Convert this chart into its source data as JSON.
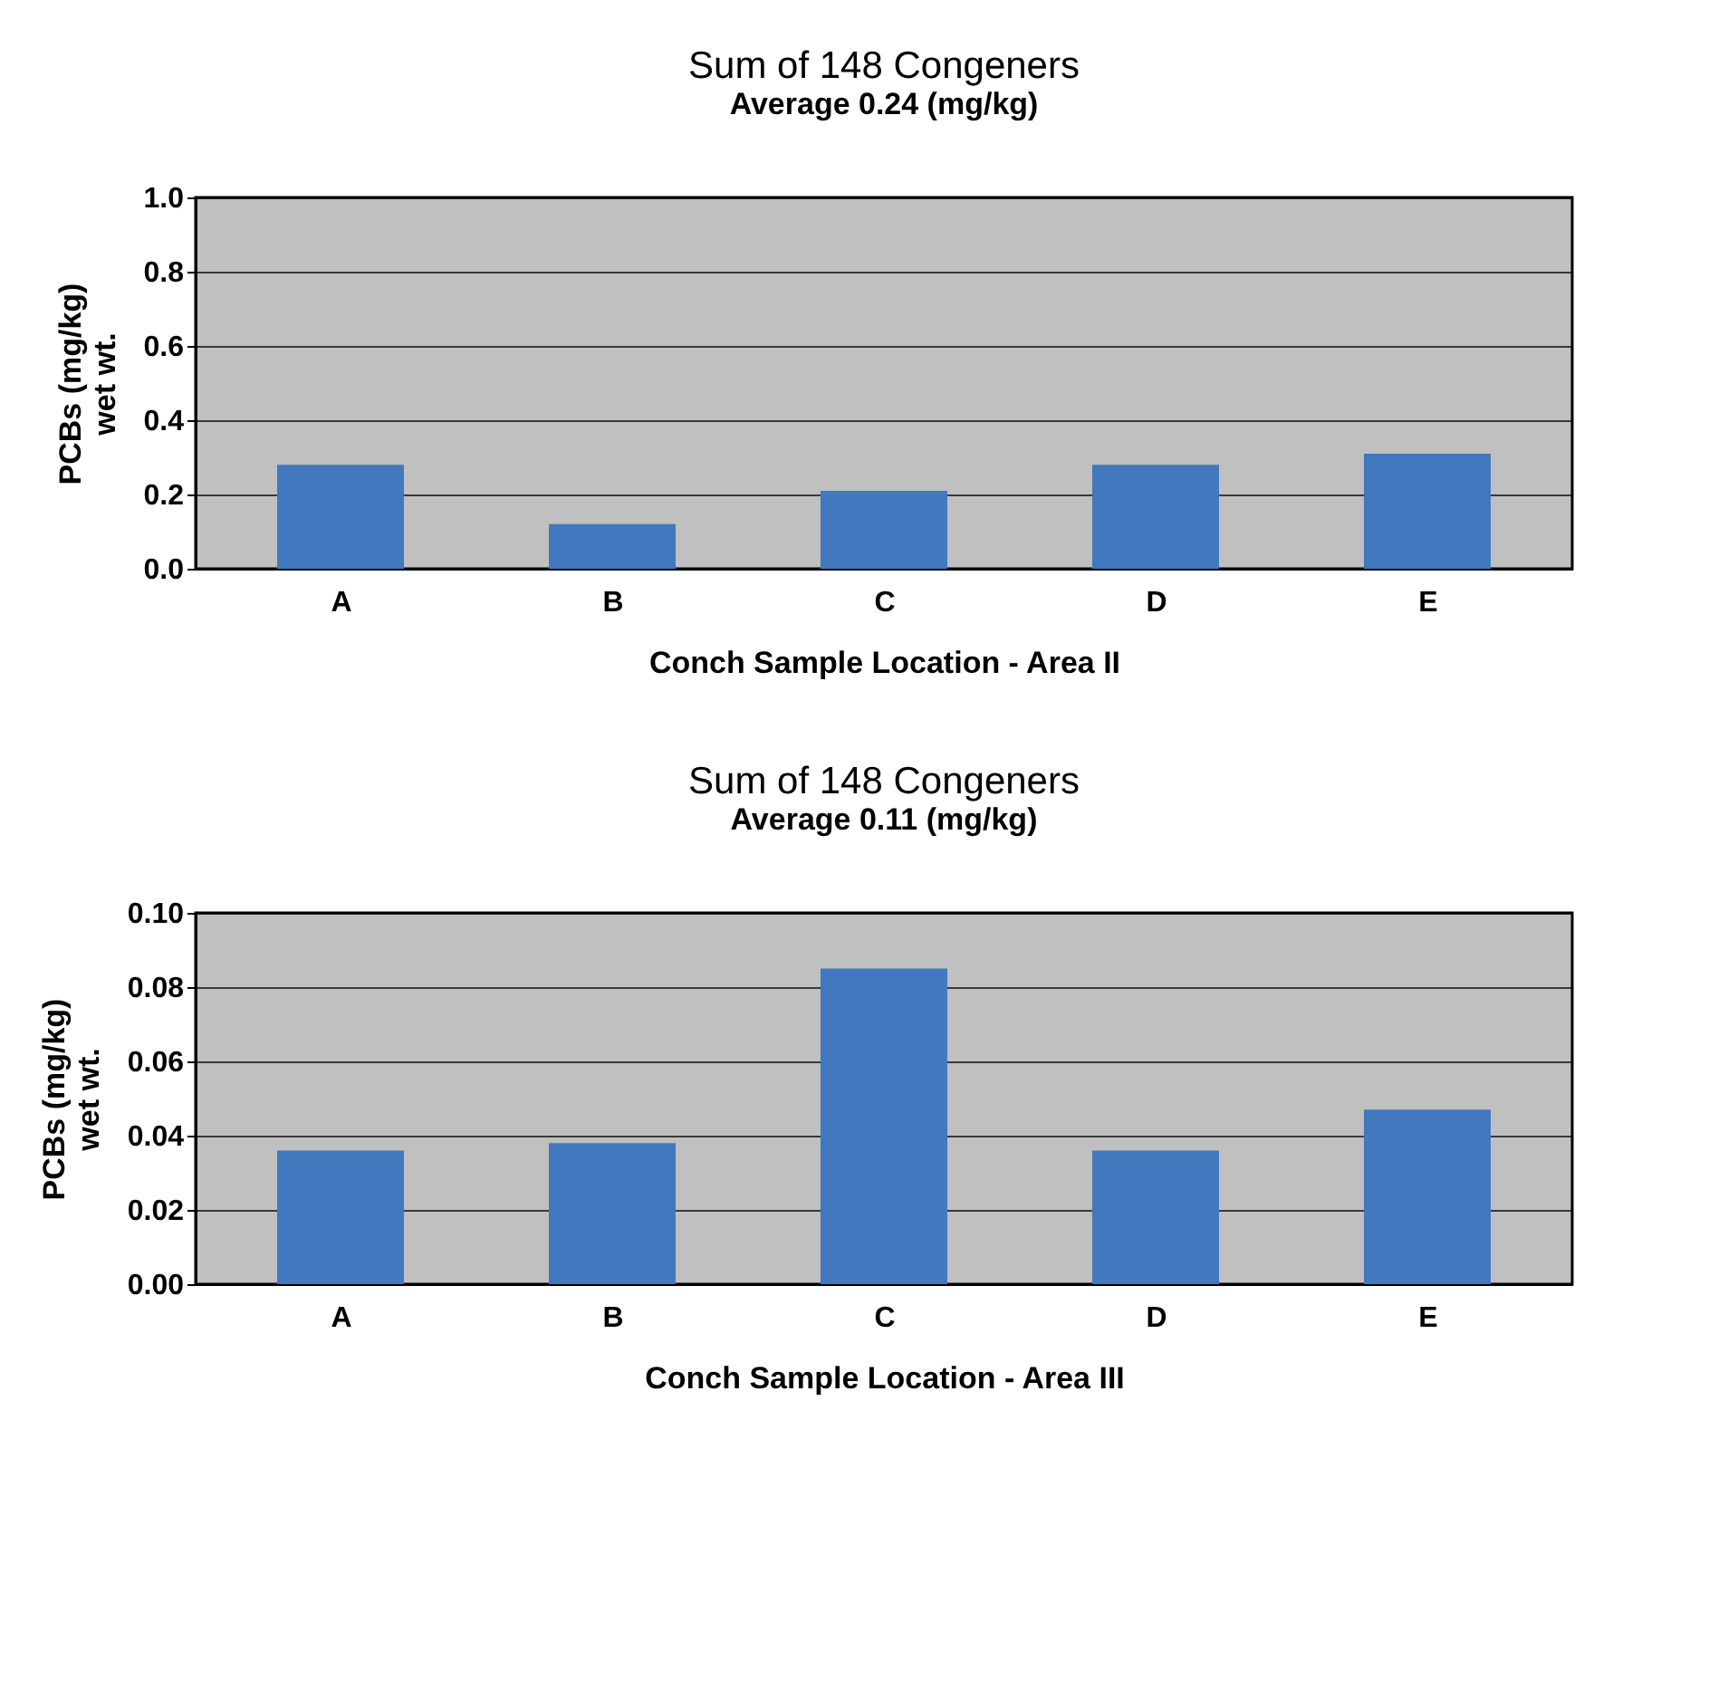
{
  "chart_data": [
    {
      "type": "bar",
      "title": "Sum of 148 Congeners",
      "subtitle": "Average 0.24 (mg/kg)",
      "xlabel": "Conch Sample Location - Area II",
      "ylabel": "PCBs (mg/kg)\nwet wt.",
      "categories": [
        "A",
        "B",
        "C",
        "D",
        "E"
      ],
      "values": [
        0.28,
        0.12,
        0.21,
        0.28,
        0.31
      ],
      "color": "#4178be",
      "ylim": [
        0,
        1.0
      ],
      "yticks": [
        {
          "value": 0,
          "label": "0.0"
        },
        0.2,
        0.4,
        0.6,
        0.8,
        {
          "value": 1.0,
          "label": "1.0"
        }
      ],
      "grid": "y"
    },
    {
      "type": "bar",
      "title": "Sum of 148 Congeners",
      "subtitle": "Average 0.11 (mg/kg)",
      "xlabel": "Conch Sample Location - Area III",
      "ylabel": "PCBs (mg/kg)\nwet wt.",
      "categories": [
        "A",
        "B",
        "C",
        "D",
        "E"
      ],
      "values": [
        0.036,
        0.038,
        0.085,
        0.036,
        0.047
      ],
      "color": "#4178be",
      "ylim": [
        0,
        0.1
      ],
      "yticks": [
        {
          "value": 0,
          "label": "0.00"
        },
        0.02,
        0.04,
        0.06,
        0.08,
        {
          "value": 0.1,
          "label": "0.10"
        }
      ],
      "grid": "y"
    }
  ]
}
